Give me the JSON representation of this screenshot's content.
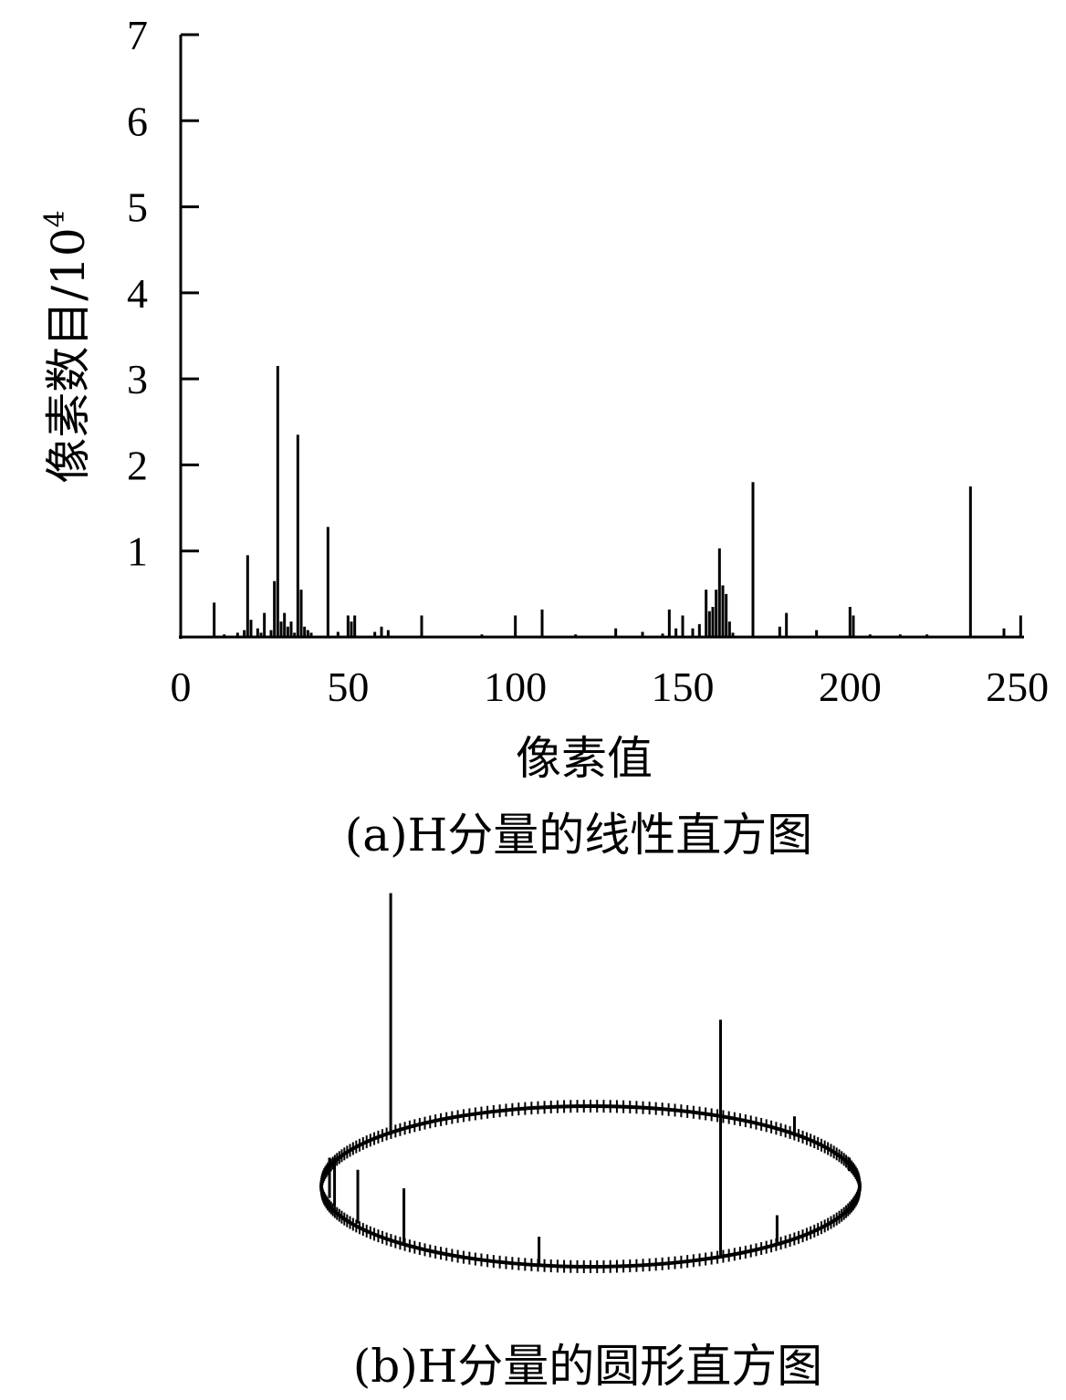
{
  "chart_data": [
    {
      "type": "bar",
      "xlabel": "像素值",
      "ylabel": "像素数目/10",
      "ylabel_exponent": "4",
      "caption": "(a)H分量的线性直方图",
      "xlim": [
        0,
        252
      ],
      "ylim": [
        0,
        7
      ],
      "xticks": [
        0,
        50,
        100,
        150,
        200,
        250
      ],
      "yticks": [
        1,
        2,
        3,
        4,
        5,
        6,
        7
      ],
      "x": [
        10,
        13,
        17,
        19,
        20,
        21,
        23,
        24,
        25,
        27,
        28,
        29,
        30,
        31,
        32,
        33,
        34,
        35,
        36,
        37,
        38,
        39,
        44,
        47,
        50,
        51,
        52,
        58,
        60,
        62,
        72,
        90,
        100,
        108,
        118,
        130,
        138,
        144,
        146,
        148,
        150,
        153,
        155,
        157,
        158,
        159,
        160,
        161,
        162,
        163,
        164,
        165,
        171,
        179,
        181,
        190,
        200,
        201,
        206,
        215,
        223,
        236,
        246,
        251
      ],
      "values": [
        0.4,
        0.03,
        0.05,
        0.08,
        0.95,
        0.2,
        0.1,
        0.05,
        0.28,
        0.08,
        0.65,
        3.15,
        0.18,
        0.28,
        0.12,
        0.18,
        0.05,
        2.35,
        0.55,
        0.12,
        0.08,
        0.05,
        1.28,
        0.06,
        0.25,
        0.18,
        0.25,
        0.06,
        0.12,
        0.08,
        0.25,
        0.03,
        0.25,
        0.32,
        0.03,
        0.1,
        0.06,
        0.04,
        0.32,
        0.1,
        0.25,
        0.1,
        0.15,
        0.55,
        0.3,
        0.35,
        0.55,
        1.03,
        0.6,
        0.5,
        0.18,
        0.05,
        1.8,
        0.12,
        0.28,
        0.08,
        0.35,
        0.25,
        0.03,
        0.03,
        0.03,
        1.75,
        0.1,
        0.25
      ],
      "grid": false,
      "legend": "none"
    },
    {
      "type": "bar",
      "layout": "circular",
      "caption": "(b)H分量的圆形直方图",
      "bins": 256,
      "tall_spikes_values": [
        1.8,
        1.75,
        0.4,
        0.4,
        0.35,
        0.3,
        0.2,
        0.2,
        0.15,
        0.1
      ],
      "tall_spikes_bins": [
        29,
        171,
        236,
        224,
        246,
        250,
        200,
        160,
        100,
        120
      ],
      "grid": false,
      "legend": "none"
    }
  ]
}
